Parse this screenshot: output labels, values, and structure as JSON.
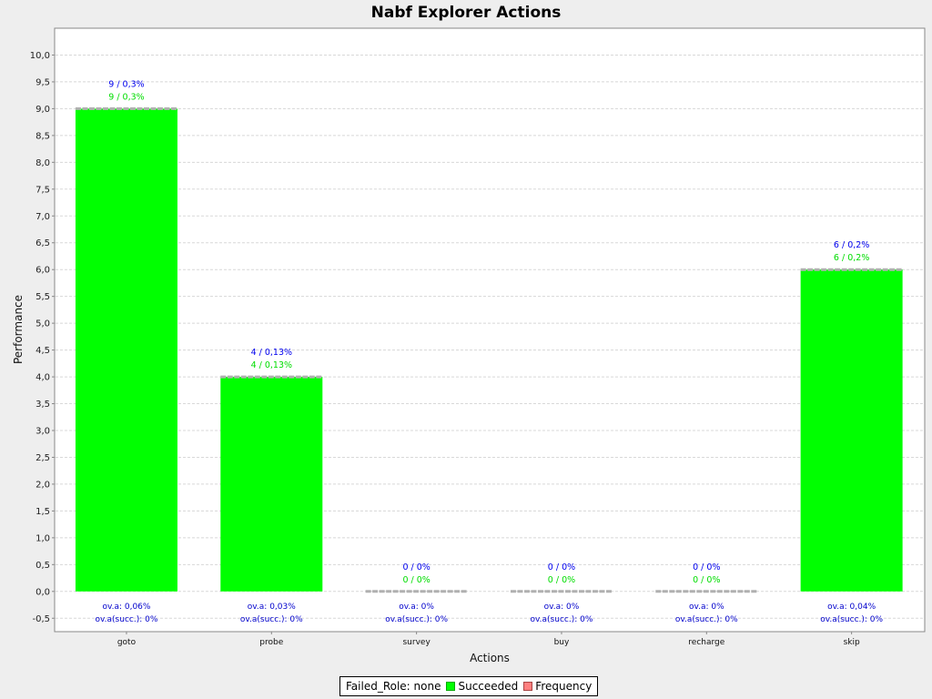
{
  "chart_data": {
    "type": "bar",
    "title": "Nabf Explorer Actions",
    "xlabel": "Actions",
    "ylabel": "Performance",
    "ylim": [
      -0.75,
      10.5
    ],
    "yticks": [
      "-0,5",
      "0,0",
      "0,5",
      "1,0",
      "1,5",
      "2,0",
      "2,5",
      "3,0",
      "3,5",
      "4,0",
      "4,5",
      "5,0",
      "5,5",
      "6,0",
      "6,5",
      "7,0",
      "7,5",
      "8,0",
      "8,5",
      "9,0",
      "9,5",
      "10,0"
    ],
    "ytick_values": [
      -0.5,
      0,
      0.5,
      1,
      1.5,
      2,
      2.5,
      3,
      3.5,
      4,
      4.5,
      5,
      5.5,
      6,
      6.5,
      7,
      7.5,
      8,
      8.5,
      9,
      9.5,
      10
    ],
    "categories": [
      "goto",
      "probe",
      "survey",
      "buy",
      "recharge",
      "skip"
    ],
    "series": [
      {
        "name": "Succeeded",
        "values": [
          9,
          4,
          0,
          0,
          0,
          6
        ],
        "color": "#00ff00"
      },
      {
        "name": "Frequency",
        "values": [
          9,
          4,
          0,
          0,
          0,
          6
        ],
        "color": "#ff5555"
      }
    ],
    "labels_total": [
      "9 / 0,3%",
      "4 / 0,13%",
      "0 / 0%",
      "0 / 0%",
      "0 / 0%",
      "6 / 0,2%"
    ],
    "labels_succeeded": [
      "9 / 0,3%",
      "4 / 0,13%",
      "0 / 0%",
      "0 / 0%",
      "0 / 0%",
      "6 / 0,2%"
    ],
    "labels_ova": [
      "ov.a: 0,06%",
      "ov.a: 0,03%",
      "ov.a: 0%",
      "ov.a: 0%",
      "ov.a: 0%",
      "ov.a: 0,04%"
    ],
    "labels_ova_succ": [
      "ov.a(succ.): 0%",
      "ov.a(succ.): 0%",
      "ov.a(succ.): 0%",
      "ov.a(succ.): 0%",
      "ov.a(succ.): 0%",
      "ov.a(succ.): 0%"
    ],
    "grid": true,
    "legend_position": "bottom"
  },
  "legend": {
    "items": [
      {
        "label": "Failed_Role: none",
        "color": ""
      },
      {
        "label": "Succeeded",
        "color": "#00ff00"
      },
      {
        "label": "Frequency",
        "color": "#ff8080"
      }
    ]
  },
  "colors": {
    "background": "#eeeeee",
    "plot_background": "#ffffff",
    "bar": "#00ff00",
    "label_blue": "#0000ee",
    "label_green": "#00dd00"
  }
}
